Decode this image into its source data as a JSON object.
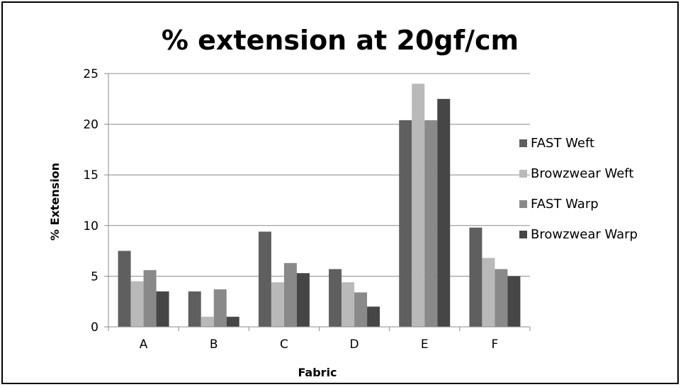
{
  "chart_data": {
    "type": "bar",
    "title": "% extension at 20gf/cm",
    "xlabel": "Fabric",
    "ylabel": "% Extension",
    "categories": [
      "A",
      "B",
      "C",
      "D",
      "E",
      "F"
    ],
    "ylim": [
      0,
      25
    ],
    "yticks": [
      0,
      5,
      10,
      15,
      20,
      25
    ],
    "grid": true,
    "legend_position": "right",
    "series": [
      {
        "name": "FAST Weft",
        "color": "#5f5f5f",
        "values": [
          7.5,
          3.5,
          9.4,
          5.7,
          20.4,
          9.8
        ]
      },
      {
        "name": "Browzwear Weft",
        "color": "#b9b9b9",
        "values": [
          4.5,
          1.0,
          4.4,
          4.4,
          24.0,
          6.8
        ]
      },
      {
        "name": "FAST Warp",
        "color": "#898989",
        "values": [
          5.6,
          3.7,
          6.3,
          3.4,
          20.4,
          5.7
        ]
      },
      {
        "name": "Browzwear Warp",
        "color": "#464646",
        "values": [
          3.5,
          1.0,
          5.3,
          2.0,
          22.5,
          5.0
        ]
      }
    ]
  }
}
